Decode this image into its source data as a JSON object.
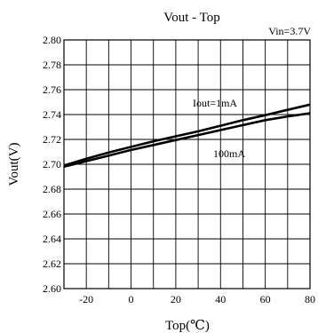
{
  "chart_data": {
    "type": "line",
    "title": "Vout - Top",
    "condition": "Vin=3.7V",
    "xlabel": "Top(℃)",
    "ylabel": "Vout(V)",
    "xlim": [
      -30,
      80
    ],
    "ylim": [
      2.6,
      2.8
    ],
    "grid": true,
    "x_ticks": [
      "-20",
      "0",
      "20",
      "40",
      "60",
      "80"
    ],
    "x_tick_values": [
      -20,
      0,
      20,
      40,
      60,
      80
    ],
    "y_ticks": [
      "2.80",
      "2.78",
      "2.76",
      "2.74",
      "2.72",
      "2.70",
      "2.68",
      "2.66",
      "2.64",
      "2.62",
      "2.60"
    ],
    "y_tick_values": [
      2.8,
      2.78,
      2.76,
      2.74,
      2.72,
      2.7,
      2.68,
      2.66,
      2.64,
      2.62,
      2.6
    ],
    "series": [
      {
        "name": "Iout=1mA",
        "x": [
          -30,
          -20,
          -10,
          0,
          10,
          20,
          30,
          40,
          50,
          60,
          70,
          80
        ],
        "y": [
          2.699,
          2.7045,
          2.7095,
          2.714,
          2.7185,
          2.7225,
          2.7265,
          2.731,
          2.7355,
          2.7395,
          2.7438,
          2.748
        ],
        "color": "#000000"
      },
      {
        "name": "100mA",
        "x": [
          -30,
          -20,
          -10,
          0,
          10,
          20,
          30,
          40,
          50,
          60,
          70,
          80
        ],
        "y": [
          2.698,
          2.7025,
          2.707,
          2.7115,
          2.7155,
          2.7195,
          2.7235,
          2.7275,
          2.7315,
          2.7355,
          2.7385,
          2.741
        ],
        "color": "#000000"
      }
    ]
  }
}
